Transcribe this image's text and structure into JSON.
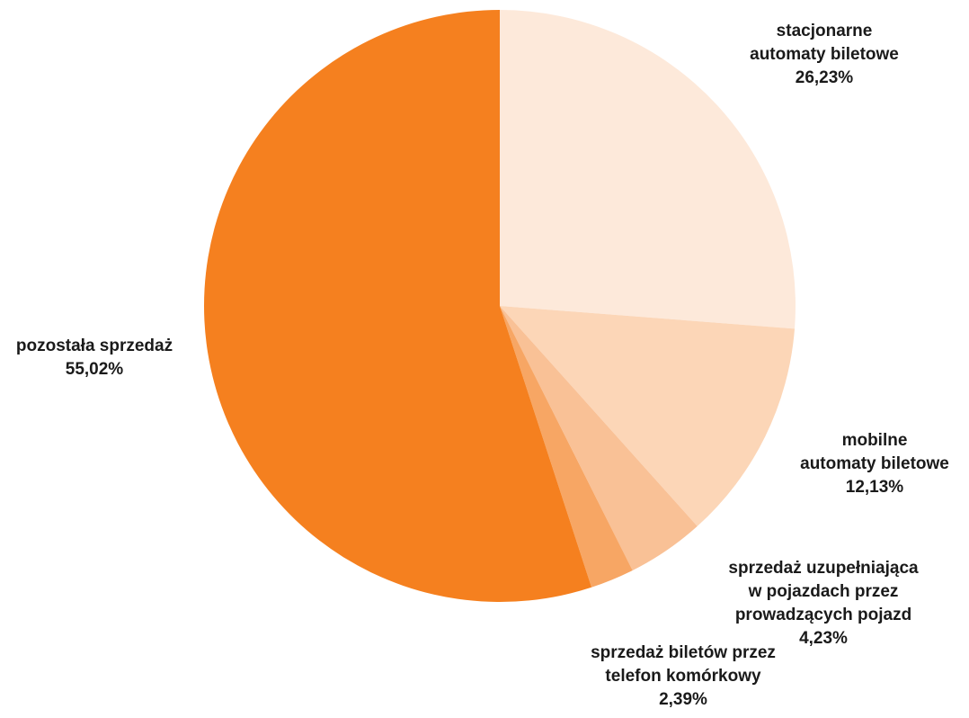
{
  "chart_data": {
    "type": "pie",
    "title": "",
    "start_angle_deg": 0,
    "direction": "clockwise",
    "slices": [
      {
        "label": "stacjonarne automaty biletowe",
        "label_lines": [
          "stacjonarne",
          "automaty biletowe"
        ],
        "value": 26.23,
        "value_label": "26,23%",
        "color": "#FDE9DA"
      },
      {
        "label": "mobilne automaty biletowe",
        "label_lines": [
          "mobilne",
          "automaty biletowe"
        ],
        "value": 12.13,
        "value_label": "12,13%",
        "color": "#FCD6B7"
      },
      {
        "label": "sprzedaż uzupełniająca w pojazdach przez prowadzących pojazd",
        "label_lines": [
          "sprzedaż uzupełniająca",
          "w pojazdach przez",
          "prowadzących pojazd"
        ],
        "value": 4.23,
        "value_label": "4,23%",
        "color": "#F9C196"
      },
      {
        "label": "sprzedaż biletów przez telefon komórkowy",
        "label_lines": [
          "sprzedaż biletów przez",
          "telefon komórkowy"
        ],
        "value": 2.39,
        "value_label": "2,39%",
        "color": "#F7A664"
      },
      {
        "label": "pozostała sprzedaż",
        "label_lines": [
          "pozostała sprzedaż"
        ],
        "value": 55.02,
        "value_label": "55,02%",
        "color": "#F5801F"
      }
    ]
  }
}
